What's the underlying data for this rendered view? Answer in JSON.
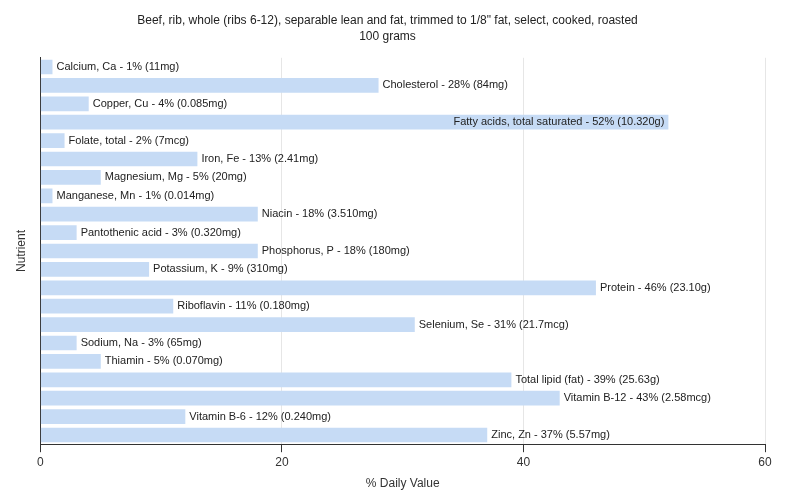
{
  "chart_data": {
    "type": "bar",
    "orientation": "horizontal",
    "title": "Beef, rib, whole (ribs 6-12), separable lean and fat, trimmed to 1/8\" fat, select, cooked, roasted",
    "subtitle": "100 grams",
    "x_label": "% Daily Value",
    "y_label": "Nutrient",
    "categories": [
      "Calcium, Ca - 1% (11mg)",
      "Cholesterol - 28% (84mg)",
      "Copper, Cu - 4% (0.085mg)",
      "Fatty acids, total saturated - 52% (10.320g)",
      "Folate, total - 2% (7mcg)",
      "Iron, Fe - 13% (2.41mg)",
      "Magnesium, Mg - 5% (20mg)",
      "Manganese, Mn - 1% (0.014mg)",
      "Niacin - 18% (3.510mg)",
      "Pantothenic acid - 3% (0.320mg)",
      "Phosphorus, P - 18% (180mg)",
      "Potassium, K - 9% (310mg)",
      "Protein - 46% (23.10g)",
      "Riboflavin - 11% (0.180mg)",
      "Selenium, Se - 31% (21.7mcg)",
      "Sodium, Na - 3% (65mg)",
      "Thiamin - 5% (0.070mg)",
      "Total lipid (fat) - 39% (25.63g)",
      "Vitamin B-12 - 43% (2.58mcg)",
      "Vitamin B-6 - 12% (0.240mg)",
      "Zinc, Zn - 37% (5.57mg)"
    ],
    "values": [
      1,
      28,
      4,
      52,
      2,
      13,
      5,
      1,
      18,
      3,
      18,
      9,
      46,
      11,
      31,
      3,
      5,
      39,
      43,
      12,
      37
    ],
    "color": "#c6dbf5",
    "xlim": [
      0,
      60
    ],
    "xticks": [
      0,
      20,
      40,
      60
    ],
    "grid": true,
    "tick_labels": "x"
  }
}
